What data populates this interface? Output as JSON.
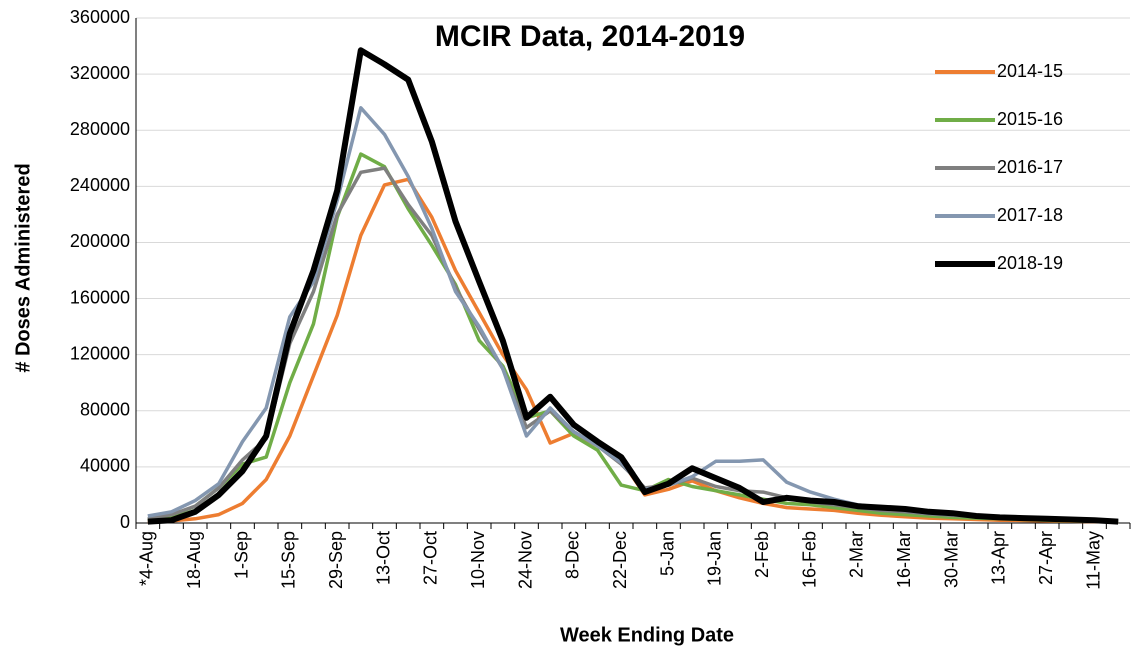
{
  "chart_data": {
    "type": "line",
    "title": "MCIR Data, 2014-2019",
    "x_label": "Week Ending Date",
    "y_label": "# Doses Administered",
    "categories": [
      "*4-Aug",
      null,
      "18-Aug",
      null,
      "1-Sep",
      null,
      "15-Sep",
      null,
      "29-Sep",
      null,
      "13-Oct",
      null,
      "27-Oct",
      null,
      "10-Nov",
      null,
      "24-Nov",
      null,
      "8-Dec",
      null,
      "22-Dec",
      null,
      "5-Jan",
      null,
      "19-Jan",
      null,
      "2-Feb",
      null,
      "16-Feb",
      null,
      "2-Mar",
      null,
      "16-Mar",
      null,
      "30-Mar",
      null,
      "13-Apr",
      null,
      "27-Apr",
      null,
      "11-May",
      null
    ],
    "ylim": [
      0,
      360000
    ],
    "yticks": [
      0,
      40000,
      80000,
      120000,
      160000,
      200000,
      240000,
      280000,
      320000,
      360000
    ],
    "grid": true,
    "legend": "right",
    "series": [
      {
        "name": "2014-15",
        "color": "#ed7d31",
        "values": [
          500,
          1500,
          3000,
          6000,
          14000,
          31000,
          62000,
          105000,
          148000,
          205000,
          241000,
          245000,
          218000,
          180000,
          150000,
          120000,
          95000,
          57000,
          64000,
          55000,
          45000,
          20000,
          24000,
          30000,
          23000,
          18000,
          14000,
          11000,
          10000,
          9000,
          7000,
          5500,
          4500,
          3500,
          3000,
          2500,
          2000,
          1800,
          1500,
          1200,
          1000,
          800
        ]
      },
      {
        "name": "2015-16",
        "color": "#70ad47",
        "values": [
          2000,
          5000,
          12000,
          25000,
          42000,
          47000,
          100000,
          142000,
          218000,
          263000,
          254000,
          224000,
          198000,
          170000,
          130000,
          112000,
          75000,
          80000,
          62000,
          52000,
          27000,
          23000,
          31000,
          26000,
          23000,
          20000,
          17000,
          14000,
          13000,
          11000,
          9000,
          7000,
          6000,
          5000,
          4000,
          3500,
          3000,
          2500,
          2000,
          1500,
          1200,
          1000
        ]
      },
      {
        "name": "2016-17",
        "color": "#7f7f7f",
        "values": [
          3000,
          6000,
          12000,
          25000,
          45000,
          60000,
          128000,
          165000,
          220000,
          250000,
          253000,
          227000,
          205000,
          168000,
          138000,
          110000,
          68000,
          80000,
          65000,
          55000,
          42000,
          25000,
          27000,
          32000,
          26000,
          23000,
          22000,
          18000,
          15000,
          13000,
          11000,
          9000,
          8000,
          6500,
          5500,
          4500,
          3500,
          3000,
          2500,
          2000,
          1500,
          1000
        ]
      },
      {
        "name": "2017-18",
        "color": "#8497b0",
        "values": [
          5000,
          8000,
          16000,
          28000,
          58000,
          82000,
          147000,
          172000,
          230000,
          296000,
          277000,
          247000,
          210000,
          165000,
          140000,
          110000,
          62000,
          82000,
          65000,
          55000,
          43000,
          24000,
          27000,
          33000,
          44000,
          44000,
          45000,
          29000,
          22000,
          17000,
          13000,
          11000,
          9000,
          7000,
          6000,
          5000,
          4000,
          3500,
          3000,
          2500,
          2000,
          1500
        ]
      },
      {
        "name": "2018-19",
        "color": "#000000",
        "values": [
          1000,
          2000,
          8000,
          20000,
          37000,
          62000,
          135000,
          180000,
          237000,
          337000,
          327000,
          316000,
          272000,
          215000,
          172000,
          130000,
          75000,
          90000,
          70000,
          58000,
          47000,
          22000,
          28000,
          39000,
          32000,
          25000,
          15000,
          18000,
          16000,
          15000,
          12000,
          11000,
          10000,
          8000,
          7000,
          5000,
          4000,
          3500,
          3000,
          2500,
          2000,
          1000
        ]
      }
    ]
  }
}
